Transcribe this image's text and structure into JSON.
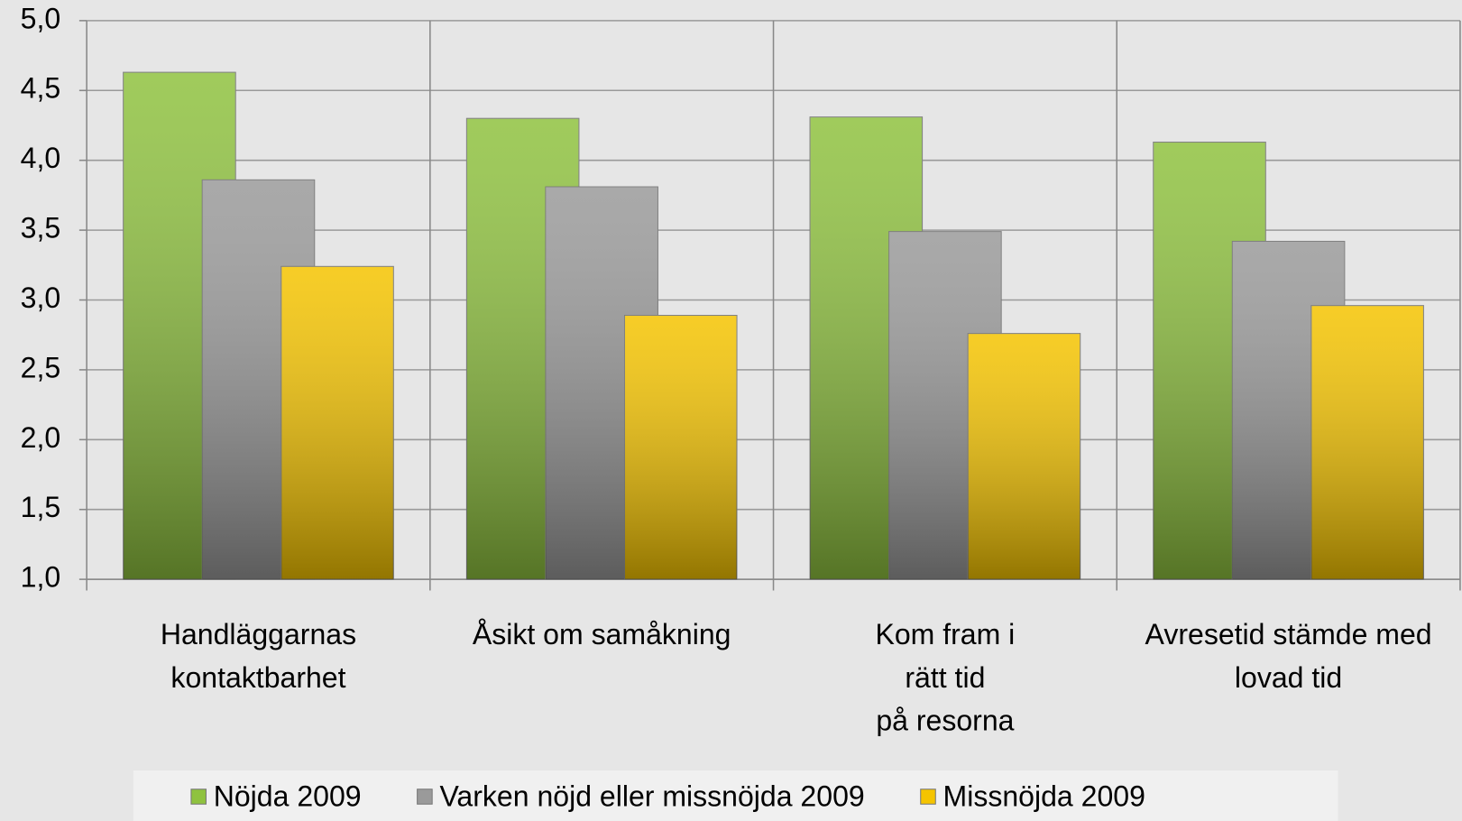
{
  "chart_data": {
    "type": "bar",
    "categories": [
      "Handläggarnas\nkontaktbarhet",
      "Åsikt om samåkning",
      "Kom fram i\nrätt tid\npå resorna",
      "Avresetid stämde med\nlovad tid"
    ],
    "series": [
      {
        "name": "Nöjda 2009",
        "color": "#8fc23f",
        "values": [
          4.63,
          4.3,
          4.31,
          4.13
        ]
      },
      {
        "name": "Varken nöjd eller missnöjda 2009",
        "color": "#9a9a9a",
        "values": [
          3.86,
          3.81,
          3.49,
          3.42
        ]
      },
      {
        "name": "Missnöjda 2009",
        "color": "#f5c400",
        "values": [
          3.24,
          2.89,
          2.76,
          2.96
        ]
      }
    ],
    "ylim": [
      1,
      5
    ],
    "yticks": [
      {
        "value": 1,
        "label": "1,0"
      },
      {
        "value": 1.5,
        "label": "1,5"
      },
      {
        "value": 2,
        "label": "2,0"
      },
      {
        "value": 2.5,
        "label": "2,5"
      },
      {
        "value": 3,
        "label": "3,0"
      },
      {
        "value": 3.5,
        "label": "3,5"
      },
      {
        "value": 4,
        "label": "4,0"
      },
      {
        "value": 4.5,
        "label": "4,5"
      },
      {
        "value": 5,
        "label": "5,0"
      }
    ],
    "grid": true
  }
}
